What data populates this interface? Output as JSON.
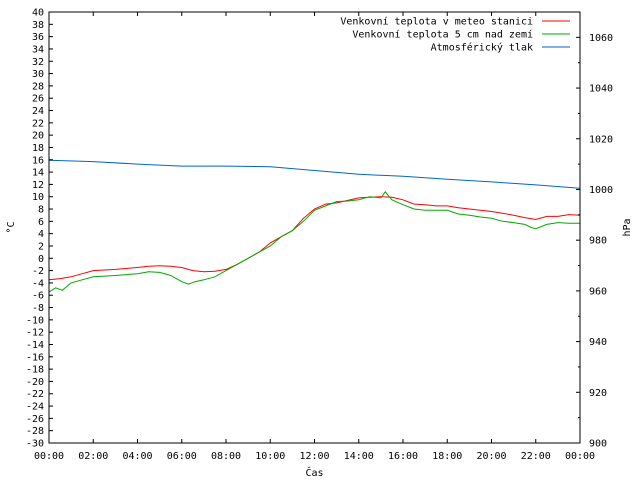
{
  "chart_data": {
    "type": "line",
    "xlabel": "Čas",
    "ylabel": "°C",
    "y2label": "hPa",
    "x_ticks": [
      "00:00",
      "02:00",
      "04:00",
      "06:00",
      "08:00",
      "10:00",
      "12:00",
      "14:00",
      "16:00",
      "18:00",
      "20:00",
      "22:00",
      "00:00"
    ],
    "x_range_hours": [
      0,
      24
    ],
    "ylim": [
      -30,
      40
    ],
    "y_tick_step": 2,
    "y2lim": [
      900,
      1070
    ],
    "y2_ticks": [
      900,
      920,
      940,
      960,
      980,
      1000,
      1020,
      1040,
      1060
    ],
    "legend_position": "top-right",
    "series": [
      {
        "name": "Venkovní teplota v meteo stanici",
        "axis": "y",
        "color": "#ff0000",
        "x": [
          0,
          0.5,
          1,
          1.5,
          2,
          3,
          4,
          4.5,
          5,
          5.5,
          6,
          6.5,
          7,
          7.5,
          8,
          8.5,
          9,
          9.5,
          10,
          10.5,
          11,
          11.5,
          12,
          12.5,
          13,
          13.5,
          14,
          14.5,
          15,
          15.5,
          16,
          16.5,
          17,
          17.5,
          18,
          18.5,
          19,
          19.5,
          20,
          20.5,
          21,
          21.5,
          22,
          22.5,
          23,
          23.5,
          24
        ],
        "y": [
          -3.5,
          -3.3,
          -3.0,
          -2.5,
          -2.0,
          -1.8,
          -1.5,
          -1.3,
          -1.2,
          -1.3,
          -1.5,
          -2.0,
          -2.2,
          -2.1,
          -1.8,
          -1.0,
          0.0,
          1.0,
          2.5,
          3.5,
          4.5,
          6.5,
          8.0,
          8.8,
          9.0,
          9.4,
          9.8,
          9.9,
          10.0,
          9.9,
          9.5,
          8.8,
          8.7,
          8.5,
          8.5,
          8.2,
          8.0,
          7.8,
          7.6,
          7.3,
          7.0,
          6.6,
          6.3,
          6.8,
          6.8,
          7.1,
          7.0
        ]
      },
      {
        "name": "Venkovní teplota 5 cm nad zemí",
        "axis": "y",
        "color": "#00aa00",
        "x": [
          0,
          0.3,
          0.6,
          1,
          1.5,
          2,
          3,
          4,
          4.5,
          5,
          5.5,
          6,
          6.3,
          6.6,
          7,
          7.5,
          8,
          8.5,
          9,
          9.5,
          10,
          10.5,
          11,
          11.5,
          12,
          12.5,
          13,
          13.5,
          14,
          14.5,
          15,
          15.2,
          15.5,
          16,
          16.5,
          17,
          17.5,
          18,
          18.5,
          19,
          19.5,
          20,
          20.5,
          21,
          21.5,
          21.8,
          22,
          22.5,
          23,
          23.5,
          24
        ],
        "y": [
          -5.5,
          -4.8,
          -5.2,
          -4.0,
          -3.5,
          -3.0,
          -2.8,
          -2.5,
          -2.2,
          -2.3,
          -2.8,
          -3.8,
          -4.2,
          -3.8,
          -3.5,
          -3.0,
          -2.0,
          -1.0,
          0.0,
          1.0,
          2.0,
          3.5,
          4.5,
          6.0,
          7.8,
          8.5,
          9.2,
          9.3,
          9.5,
          10.0,
          9.8,
          10.8,
          9.5,
          8.7,
          8.0,
          7.8,
          7.8,
          7.8,
          7.2,
          7.0,
          6.7,
          6.5,
          6.0,
          5.8,
          5.5,
          5.0,
          4.8,
          5.5,
          5.8,
          5.7,
          5.7
        ]
      },
      {
        "name": "Atmosférický tlak",
        "axis": "y2",
        "color": "#0066cc",
        "x": [
          0,
          2,
          4,
          6,
          8,
          10,
          12,
          14,
          16,
          18,
          20,
          22,
          24
        ],
        "y": [
          1011.5,
          1011.0,
          1010.0,
          1009.2,
          1009.2,
          1009.0,
          1007.5,
          1006.0,
          1005.2,
          1004.0,
          1003.0,
          1001.8,
          1000.5
        ]
      }
    ]
  }
}
